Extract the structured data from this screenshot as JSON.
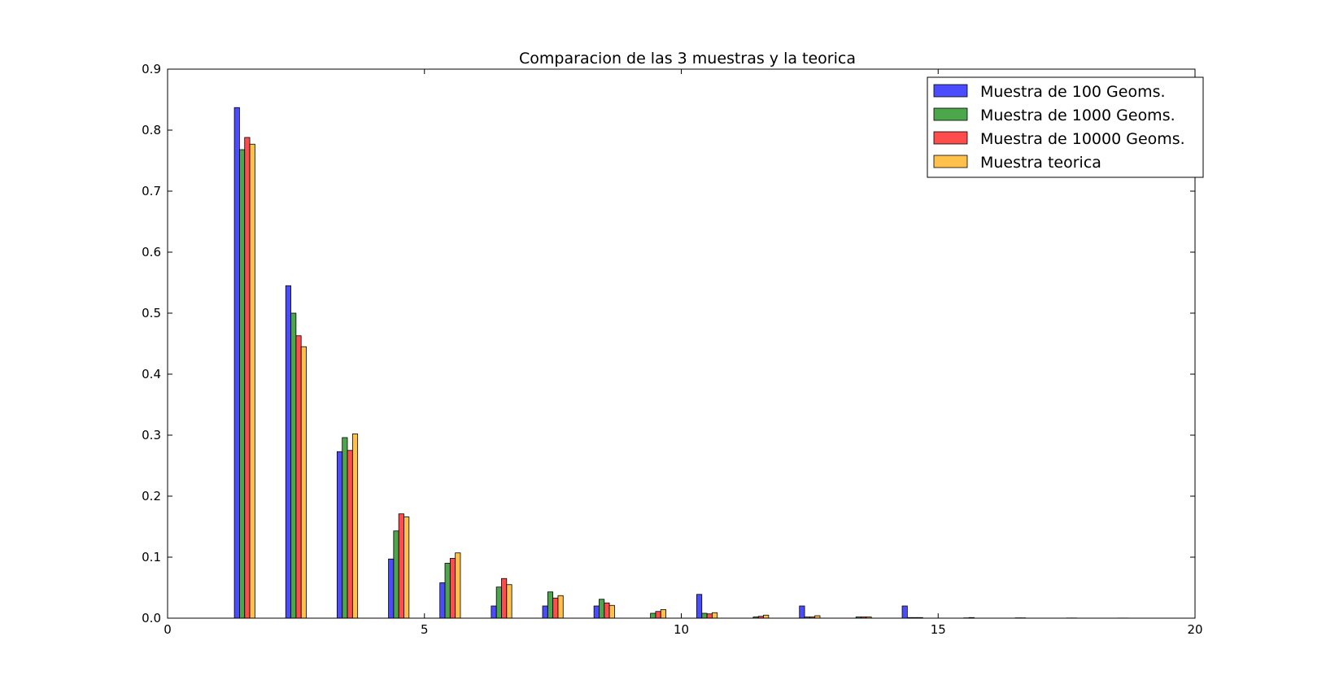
{
  "chart_data": {
    "type": "bar",
    "title": "Comparacion de las 3 muestras y la teorica",
    "xlabel": "",
    "ylabel": "",
    "xlim": [
      0,
      20
    ],
    "ylim": [
      0,
      0.9
    ],
    "xticks": [
      "0",
      "5",
      "10",
      "15",
      "20"
    ],
    "yticks": [
      "0.0",
      "0.1",
      "0.2",
      "0.3",
      "0.4",
      "0.5",
      "0.6",
      "0.7",
      "0.8",
      "0.9"
    ],
    "grid": false,
    "legend_position": "top-right",
    "x": [
      0,
      1,
      2,
      3,
      4,
      5,
      6,
      7,
      8,
      9,
      10,
      11,
      12,
      13,
      14,
      15,
      16,
      17,
      18
    ],
    "series": [
      {
        "name": "Muestra de 100 Geoms.",
        "color": "#0000ff",
        "values": [
          0,
          0.837,
          0.545,
          0.273,
          0.097,
          0.058,
          0.02,
          0.02,
          0.02,
          0,
          0.039,
          0,
          0.02,
          0,
          0.02,
          0,
          0,
          0,
          0
        ]
      },
      {
        "name": "Muestra de 1000 Geoms.",
        "color": "#008000",
        "values": [
          0,
          0.768,
          0.5,
          0.296,
          0.143,
          0.09,
          0.051,
          0.043,
          0.031,
          0.008,
          0.008,
          0.002,
          0.002,
          0.002,
          0.001,
          0,
          0,
          0,
          0
        ]
      },
      {
        "name": "Muestra de 10000 Geoms.",
        "color": "#ff0000",
        "values": [
          0,
          0.788,
          0.463,
          0.275,
          0.171,
          0.098,
          0.065,
          0.033,
          0.025,
          0.011,
          0.007,
          0.003,
          0.002,
          0.002,
          0.001,
          0.0005,
          0.0005,
          0.0003,
          0.0002
        ]
      },
      {
        "name": "Muestra teorica",
        "color": "#ffa500",
        "values": [
          0,
          0.777,
          0.445,
          0.302,
          0.166,
          0.107,
          0.055,
          0.037,
          0.021,
          0.014,
          0.009,
          0.005,
          0.004,
          0.002,
          0.001,
          0.001,
          0.0005,
          0.0003,
          0.0002
        ]
      }
    ]
  }
}
